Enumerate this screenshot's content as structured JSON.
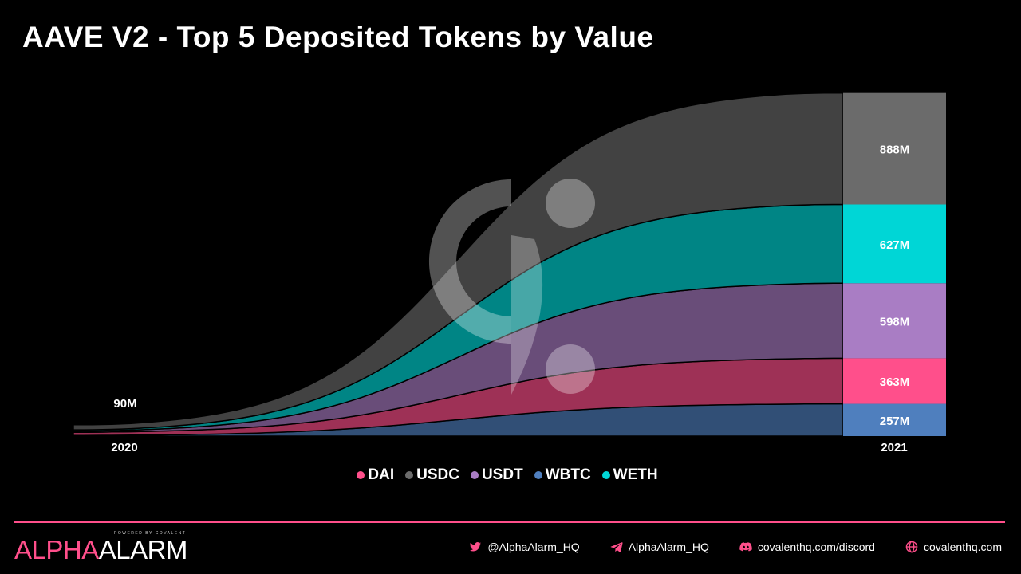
{
  "title": "AAVE V2 - Top 5 Deposited Tokens by Value",
  "colors": {
    "DAI": "#ff4f8b",
    "USDC": "#6b6b6b",
    "USDT": "#a97dc4",
    "WBTC": "#4f7fbe",
    "WETH": "#00d6d6",
    "accent": "#ff4f8b"
  },
  "chart_data": {
    "type": "area",
    "x": [
      "2020",
      "2021"
    ],
    "stack_order_bottom_to_top": [
      "WBTC",
      "DAI",
      "USDT",
      "WETH",
      "USDC"
    ],
    "series": [
      {
        "name": "WBTC",
        "start": 5,
        "end": 257
      },
      {
        "name": "DAI",
        "start": 25,
        "end": 363
      },
      {
        "name": "USDT",
        "start": 10,
        "end": 598
      },
      {
        "name": "WETH",
        "start": 10,
        "end": 627
      },
      {
        "name": "USDC",
        "start": 40,
        "end": 888
      }
    ],
    "start_total_label": "90M",
    "end_labels": [
      "888M",
      "627M",
      "598M",
      "363M",
      "257M"
    ],
    "ylim": [
      0,
      2750
    ],
    "grid": false,
    "legend_position": "bottom"
  },
  "legend": {
    "items": [
      "DAI",
      "USDC",
      "USDT",
      "WBTC",
      "WETH"
    ]
  },
  "footer": {
    "brand_alpha": "ALPHA",
    "brand_alarm": "ALARM",
    "brand_powered": "POWERED BY COVALENT",
    "twitter": "@AlphaAlarm_HQ",
    "telegram": "AlphaAlarm_HQ",
    "discord": "covalenthq.com/discord",
    "website": "covalenthq.com"
  }
}
